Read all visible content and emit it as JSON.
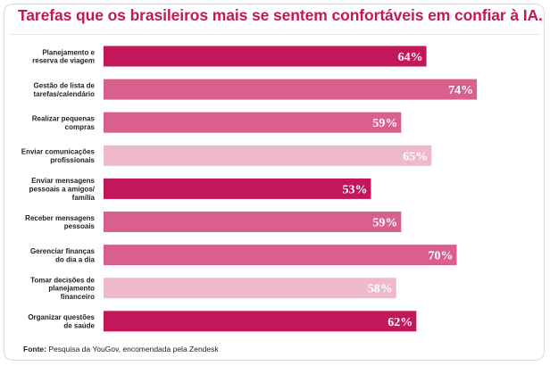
{
  "title": "Tarefas que os brasileiros mais se sentem confortáveis em confiar à IA.",
  "source": {
    "label": "Fonte:",
    "text": "Pesquisa da YouGov, encomendada pela Zendesk"
  },
  "colors": {
    "title": "#c2185b",
    "shades": [
      "#c2185b",
      "#d9608e",
      "#efb9cc"
    ]
  },
  "chart_data": {
    "type": "bar",
    "orientation": "horizontal",
    "title": "Tarefas que os brasileiros mais se sentem confortáveis em confiar à IA.",
    "xlim": [
      0,
      100
    ],
    "grid": false,
    "legend": "none",
    "categories": [
      [
        "Planejamento e",
        "reserva de viagem"
      ],
      [
        "Gestão de lista de",
        "tarefas/calendário"
      ],
      [
        "Realizar pequenas",
        "compras"
      ],
      [
        "Enviar comunicações",
        "profissionais"
      ],
      [
        "Enviar mensagens",
        "pessoais a amigos/",
        "família"
      ],
      [
        "Receber mensagens",
        "pessoais"
      ],
      [
        "Gerenciar finanças",
        "do dia a dia"
      ],
      [
        "Tomar decisões de",
        "planejamento",
        "financeiro"
      ],
      [
        "Organizar questões",
        "de saúde"
      ]
    ],
    "values": [
      64,
      74,
      59,
      65,
      53,
      59,
      70,
      58,
      62
    ],
    "value_labels": [
      "64%",
      "74%",
      "59%",
      "65%",
      "53%",
      "59%",
      "70%",
      "58%",
      "62%"
    ],
    "bar_shades": [
      0,
      1,
      1,
      2,
      0,
      1,
      1,
      2,
      0
    ]
  }
}
